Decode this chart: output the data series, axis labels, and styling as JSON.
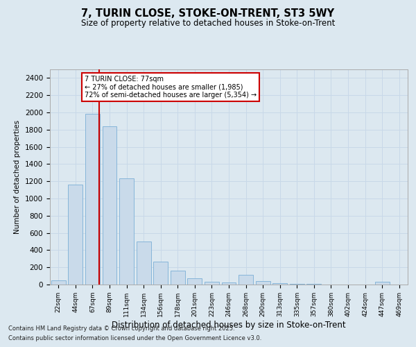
{
  "title1": "7, TURIN CLOSE, STOKE-ON-TRENT, ST3 5WY",
  "title2": "Size of property relative to detached houses in Stoke-on-Trent",
  "xlabel": "Distribution of detached houses by size in Stoke-on-Trent",
  "ylabel": "Number of detached properties",
  "categories": [
    "22sqm",
    "44sqm",
    "67sqm",
    "89sqm",
    "111sqm",
    "134sqm",
    "156sqm",
    "178sqm",
    "201sqm",
    "223sqm",
    "246sqm",
    "268sqm",
    "290sqm",
    "313sqm",
    "335sqm",
    "357sqm",
    "380sqm",
    "402sqm",
    "424sqm",
    "447sqm",
    "469sqm"
  ],
  "values": [
    50,
    1165,
    1980,
    1840,
    1230,
    500,
    270,
    160,
    75,
    35,
    25,
    110,
    40,
    15,
    5,
    5,
    2,
    2,
    2,
    30,
    2
  ],
  "bar_color": "#c9daea",
  "bar_edge_color": "#7aaed6",
  "red_line_x": 2.4,
  "annotation_title": "7 TURIN CLOSE: 77sqm",
  "annotation_line1": "← 27% of detached houses are smaller (1,985)",
  "annotation_line2": "72% of semi-detached houses are larger (5,354) →",
  "annotation_box_color": "#ffffff",
  "annotation_box_edge": "#cc0000",
  "red_line_color": "#cc0000",
  "grid_color": "#c8d8e8",
  "background_color": "#dce8f0",
  "plot_bg_color": "#dce8f0",
  "footnote1": "Contains HM Land Registry data © Crown copyright and database right 2025.",
  "footnote2": "Contains public sector information licensed under the Open Government Licence v3.0.",
  "ylim": [
    0,
    2500
  ],
  "yticks": [
    0,
    200,
    400,
    600,
    800,
    1000,
    1200,
    1400,
    1600,
    1800,
    2000,
    2200,
    2400
  ]
}
